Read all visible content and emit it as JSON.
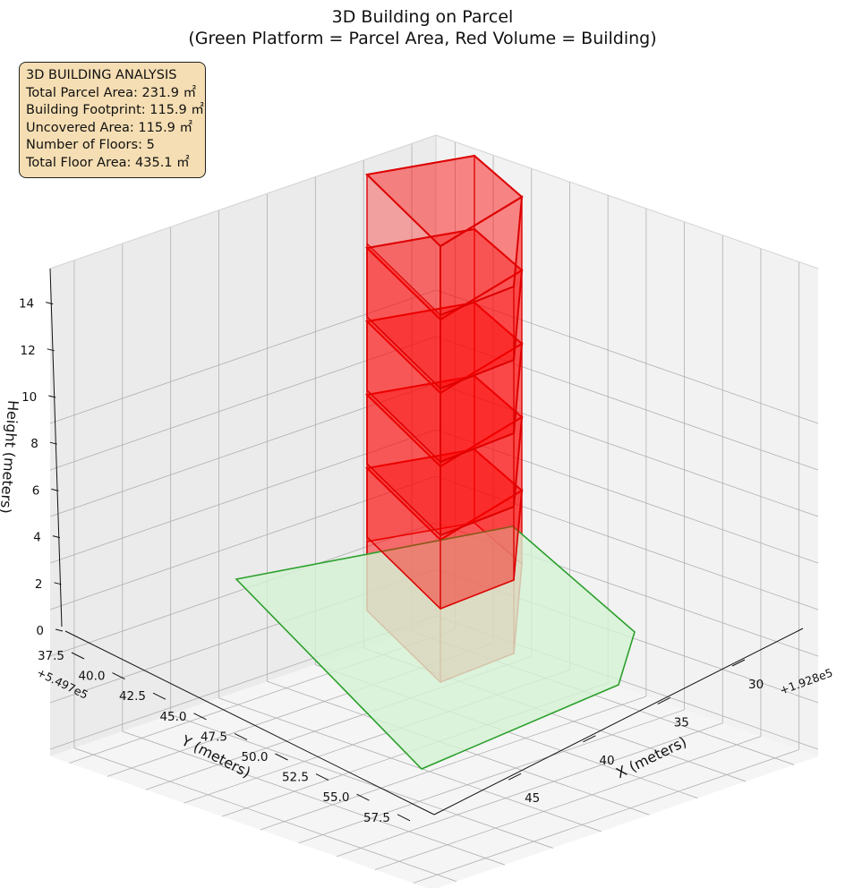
{
  "chart_data": {
    "type": "3d-polygon",
    "title": "3D Building on Parcel",
    "subtitle": "(Green Platform = Parcel Area, Red Volume = Building)",
    "xlabel": "X (meters)",
    "ylabel": "Y (meters)",
    "zlabel": "Height (meters)",
    "x_offset_label": "+1.928e5",
    "y_offset_label": "+5.497e5",
    "x_ticks": [
      "30",
      "35",
      "40",
      "45"
    ],
    "y_ticks": [
      "37.5",
      "40.0",
      "42.5",
      "45.0",
      "47.5",
      "50.0",
      "52.5",
      "55.0",
      "57.5"
    ],
    "z_ticks": [
      "0",
      "2",
      "4",
      "6",
      "8",
      "10",
      "12",
      "14"
    ],
    "grid": true,
    "colors": {
      "parcel_fill": "#d4f2d4",
      "parcel_edge": "#2ca02c",
      "building_fill": "#ff0000",
      "building_edge": "#dd0000"
    },
    "parcel_area_label": "Green Platform = Parcel Area",
    "building_label": "Red Volume = Building",
    "floors": [
      {
        "floor": 1,
        "z_bottom": 0,
        "z_top": 3
      },
      {
        "floor": 2,
        "z_bottom": 3,
        "z_top": 6
      },
      {
        "floor": 3,
        "z_bottom": 6,
        "z_top": 9
      },
      {
        "floor": 4,
        "z_bottom": 9,
        "z_top": 12
      },
      {
        "floor": 5,
        "z_bottom": 12,
        "z_top": 15
      }
    ]
  },
  "info_box": {
    "line1": "3D BUILDING ANALYSIS",
    "line2": "Total Parcel Area: 231.9 ㎡",
    "line3": "Building Footprint: 115.9 ㎡",
    "line4": "Uncovered Area: 115.9 ㎡",
    "line5": "Number of Floors: 5",
    "line6": "Total Floor Area: 435.1 ㎡"
  }
}
